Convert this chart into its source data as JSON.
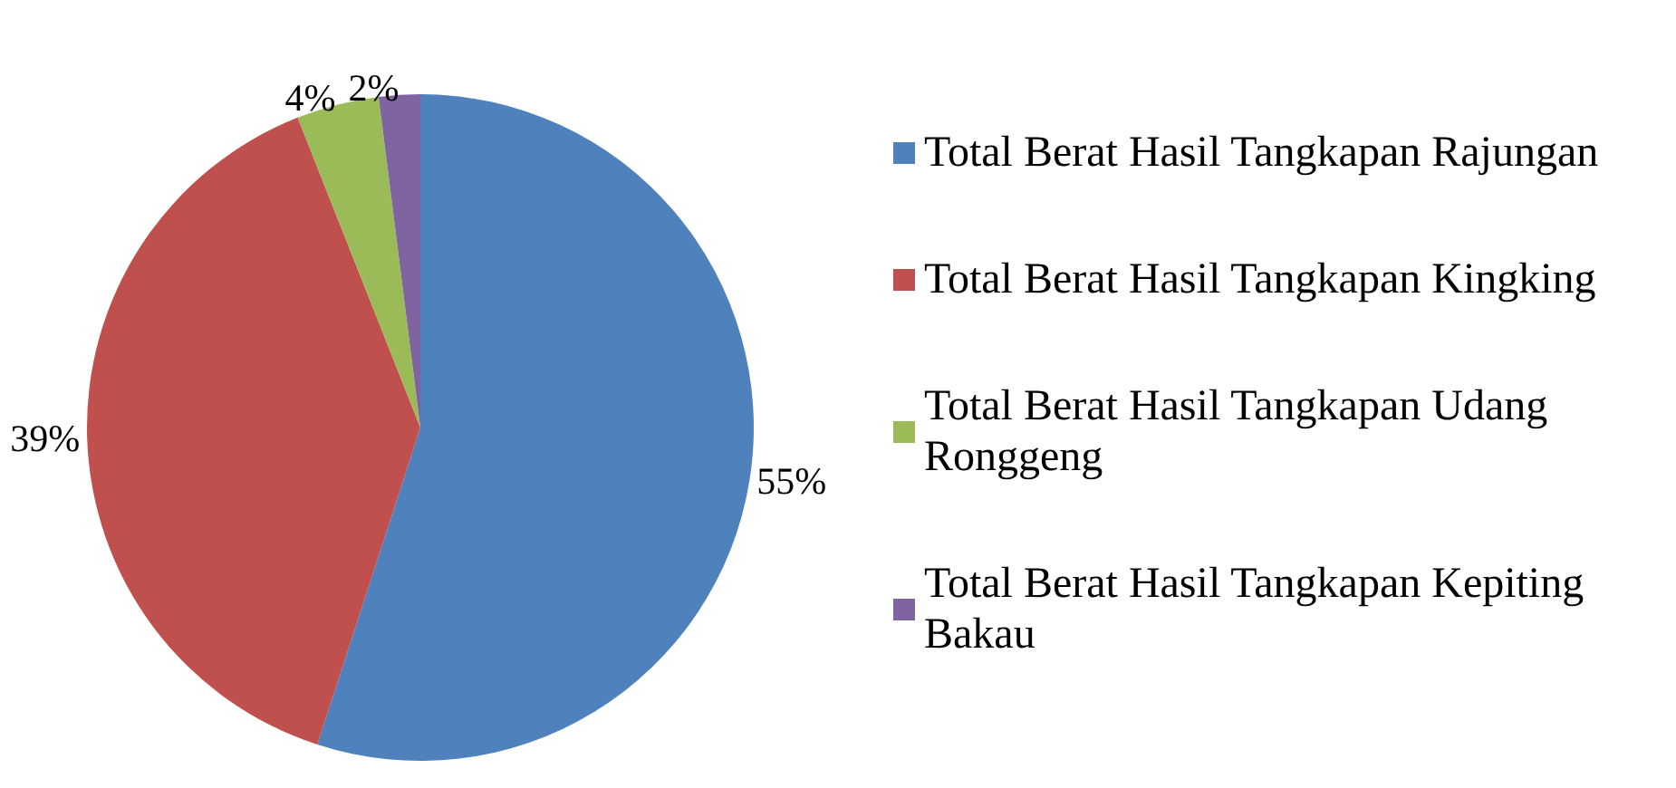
{
  "chart_data": {
    "type": "pie",
    "categories": [
      "Total Berat Hasil Tangkapan Rajungan",
      "Total Berat Hasil Tangkapan Kingking",
      "Total Berat Hasil Tangkapan Udang Ronggeng",
      "Total Berat Hasil Tangkapan Kepiting Bakau"
    ],
    "values": [
      55,
      39,
      4,
      2
    ],
    "colors": [
      "#4f81bd",
      "#c0504d",
      "#9bbb59",
      "#8064a2"
    ],
    "value_labels": [
      "55%",
      "39%",
      "4%",
      "2%"
    ],
    "legend": "right"
  }
}
